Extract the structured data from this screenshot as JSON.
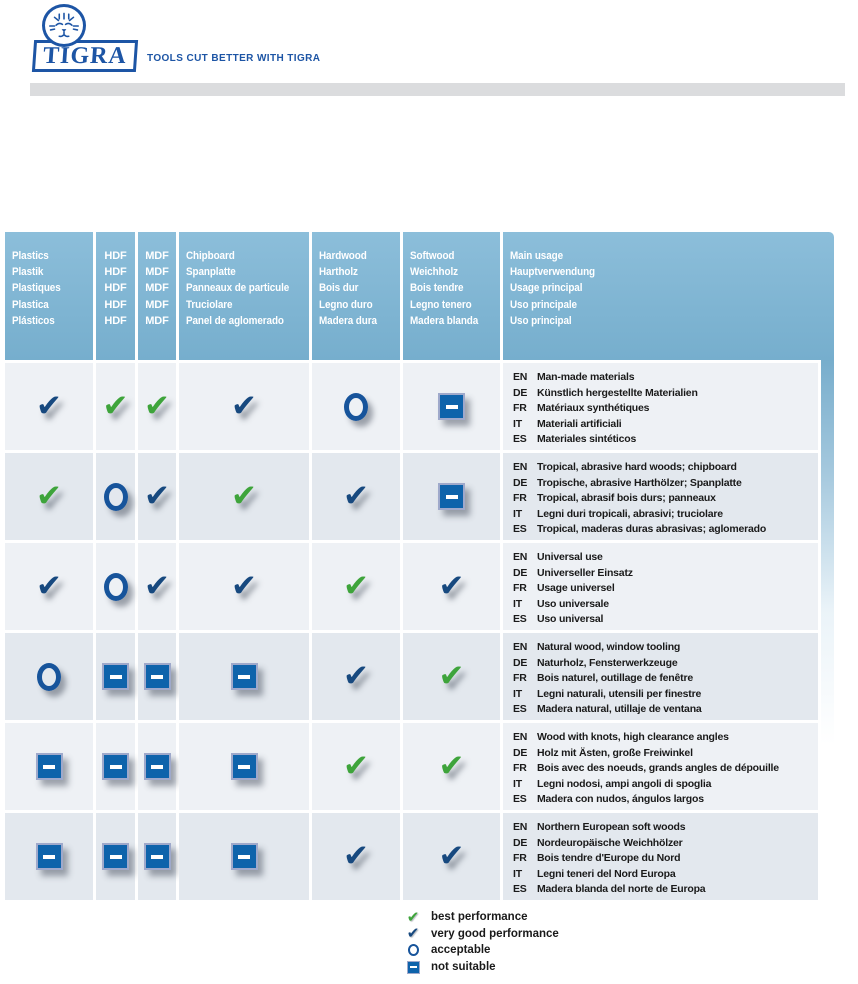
{
  "brand": {
    "name": "TIGRA",
    "tagline": "TOOLS CUT BETTER WITH TIGRA"
  },
  "colors": {
    "brand_blue": "#1d55a5",
    "header_blue": "#7db3d0",
    "best_green": "#3ea43b",
    "very_good_navy": "#17497f",
    "acceptable_blue": "#17549b",
    "not_suitable_blue": "#0e63ab",
    "row_light": "#eef1f5",
    "row_dark": "#e3e8ee",
    "divider_gray": "#dbdcde"
  },
  "table": {
    "columns": [
      {
        "id": "plastics",
        "center": false,
        "lines": [
          "Plastics",
          "Plastik",
          "Plastiques",
          "Plastica",
          "Plásticos"
        ]
      },
      {
        "id": "hdf",
        "center": true,
        "lines": [
          "HDF",
          "HDF",
          "HDF",
          "HDF",
          "HDF"
        ]
      },
      {
        "id": "mdf",
        "center": true,
        "lines": [
          "MDF",
          "MDF",
          "MDF",
          "MDF",
          "MDF"
        ]
      },
      {
        "id": "chipboard",
        "center": false,
        "lines": [
          "Chipboard",
          "Spanplatte",
          "Panneaux de particule",
          "Truciolare",
          "Panel de aglomerado"
        ]
      },
      {
        "id": "hardwood",
        "center": false,
        "lines": [
          "Hardwood",
          "Hartholz",
          "Bois dur",
          "Legno duro",
          "Madera dura"
        ]
      },
      {
        "id": "softwood",
        "center": false,
        "lines": [
          "Softwood",
          "Weichholz",
          "Bois tendre",
          "Legno tenero",
          "Madera blanda"
        ]
      },
      {
        "id": "usage",
        "center": false,
        "lines": [
          "Main usage",
          "Hauptverwendung",
          "Usage principal",
          "Uso principale",
          "Uso principal"
        ]
      }
    ],
    "rows": [
      {
        "ratings": [
          "very-good",
          "best",
          "best",
          "very-good",
          "acceptable",
          "not-suitable"
        ],
        "usage": [
          [
            "EN",
            "Man-made materials"
          ],
          [
            "DE",
            "Künstlich hergestellte Materialien"
          ],
          [
            "FR",
            "Matériaux synthétiques"
          ],
          [
            "IT",
            "Materiali artificiali"
          ],
          [
            "ES",
            "Materiales sintéticos"
          ]
        ]
      },
      {
        "ratings": [
          "best",
          "acceptable",
          "very-good",
          "best",
          "very-good",
          "not-suitable"
        ],
        "usage": [
          [
            "EN",
            "Tropical, abrasive hard woods; chipboard"
          ],
          [
            "DE",
            "Tropische, abrasive Harthölzer; Spanplatte"
          ],
          [
            "FR",
            "Tropical, abrasif bois durs; panneaux"
          ],
          [
            "IT",
            "Legni duri tropicali, abrasivi; truciolare"
          ],
          [
            "ES",
            "Tropical, maderas duras abrasivas; aglomerado"
          ]
        ]
      },
      {
        "ratings": [
          "very-good",
          "acceptable",
          "very-good",
          "very-good",
          "best",
          "very-good"
        ],
        "usage": [
          [
            "EN",
            "Universal use"
          ],
          [
            "DE",
            "Universeller Einsatz"
          ],
          [
            "FR",
            "Usage universel"
          ],
          [
            "IT",
            "Uso universale"
          ],
          [
            "ES",
            "Uso universal"
          ]
        ]
      },
      {
        "ratings": [
          "acceptable",
          "not-suitable",
          "not-suitable",
          "not-suitable",
          "very-good",
          "best"
        ],
        "usage": [
          [
            "EN",
            "Natural wood, window tooling"
          ],
          [
            "DE",
            "Naturholz, Fensterwerkzeuge"
          ],
          [
            "FR",
            "Bois naturel, outillage de fenêtre"
          ],
          [
            "IT",
            "Legni naturali, utensili per finestre"
          ],
          [
            "ES",
            "Madera natural, utillaje de ventana"
          ]
        ]
      },
      {
        "ratings": [
          "not-suitable",
          "not-suitable",
          "not-suitable",
          "not-suitable",
          "best",
          "best"
        ],
        "usage": [
          [
            "EN",
            "Wood with knots, high clearance angles"
          ],
          [
            "DE",
            "Holz mit Ästen, große Freiwinkel"
          ],
          [
            "FR",
            "Bois avec des noeuds, grands angles de dépouille"
          ],
          [
            "IT",
            "Legni nodosi, ampi angoli di spoglia"
          ],
          [
            "ES",
            "Madera con nudos, ángulos largos"
          ]
        ]
      },
      {
        "ratings": [
          "not-suitable",
          "not-suitable",
          "not-suitable",
          "not-suitable",
          "very-good",
          "very-good"
        ],
        "usage": [
          [
            "EN",
            "Northern European soft woods"
          ],
          [
            "DE",
            "Nordeuropäische Weichhölzer"
          ],
          [
            "FR",
            "Bois tendre d'Europe du Nord"
          ],
          [
            "IT",
            "Legni teneri del Nord Europa"
          ],
          [
            "ES",
            "Madera blanda del norte de Europa"
          ]
        ]
      }
    ]
  },
  "legend": {
    "items": [
      {
        "rating": "best",
        "label": "best performance"
      },
      {
        "rating": "very-good",
        "label": "very good performance"
      },
      {
        "rating": "acceptable",
        "label": "acceptable"
      },
      {
        "rating": "not-suitable",
        "label": "not suitable"
      }
    ]
  }
}
